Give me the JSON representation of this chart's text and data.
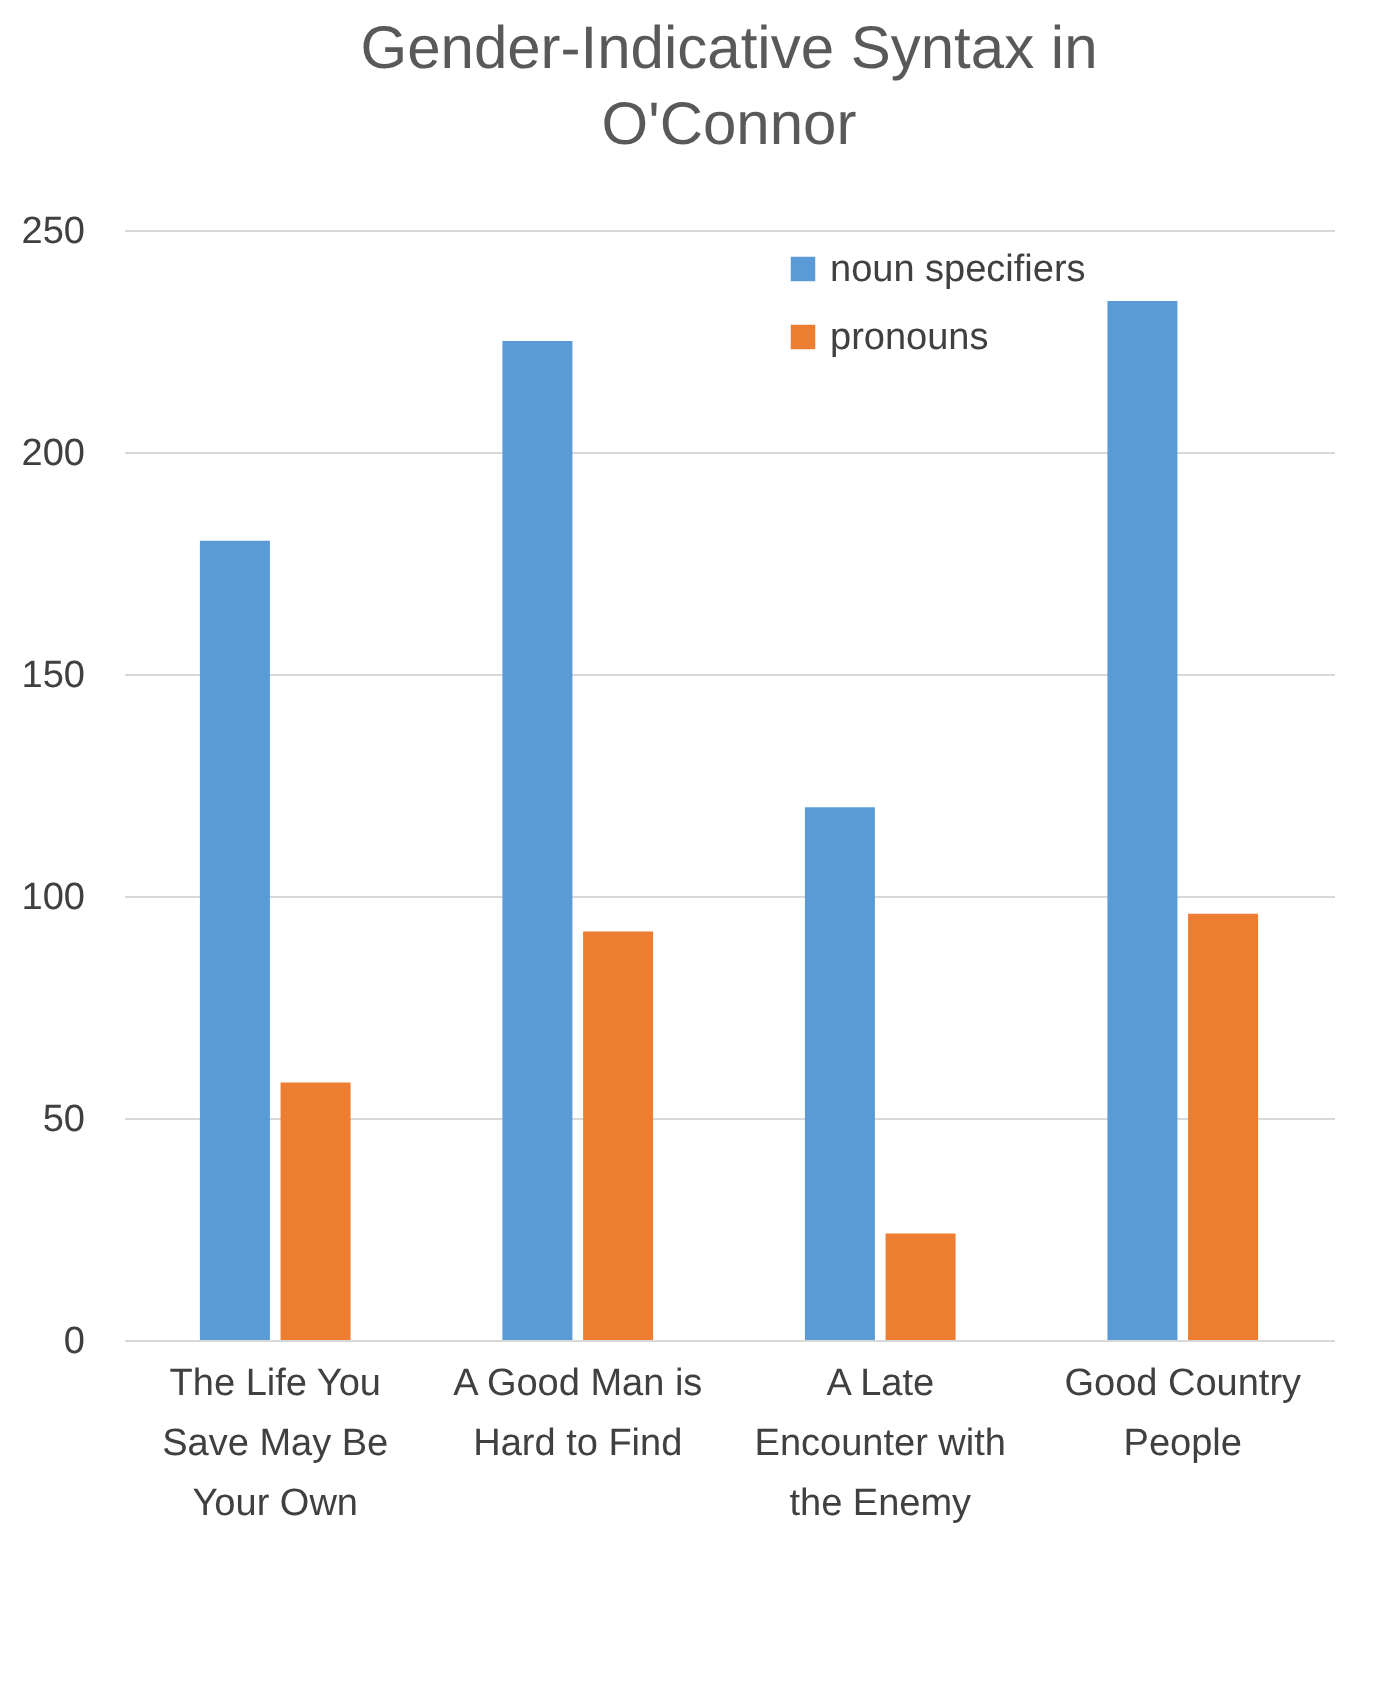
{
  "chart_data": {
    "type": "bar",
    "title": "Gender-Indicative Syntax in O'Connor",
    "categories": [
      "The Life You Save May Be Your Own",
      "A Good Man is Hard to Find",
      "A Late Encounter with the Enemy",
      "Good Country People"
    ],
    "series": [
      {
        "name": "noun specifiers",
        "color": "#5b9bd5",
        "values": [
          180,
          225,
          120,
          234
        ]
      },
      {
        "name": "pronouns",
        "color": "#ed7d31",
        "values": [
          58,
          92,
          24,
          96
        ]
      }
    ],
    "ylim": [
      0,
      250
    ],
    "yticks": [
      0,
      50,
      100,
      150,
      200,
      250
    ],
    "grid": "y",
    "legend": "top right"
  }
}
